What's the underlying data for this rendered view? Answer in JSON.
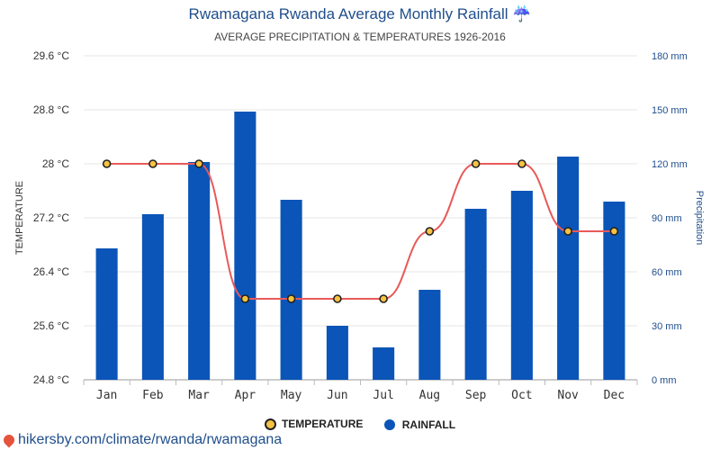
{
  "header": {
    "title": "Rwamagana Rwanda Average Monthly Rainfall ☔",
    "subtitle": "AVERAGE PRECIPITATION & TEMPERATURES 1926-2016"
  },
  "chart_data": {
    "type": "bar",
    "categories": [
      "Jan",
      "Feb",
      "Mar",
      "Apr",
      "May",
      "Jun",
      "Jul",
      "Aug",
      "Sep",
      "Oct",
      "Nov",
      "Dec"
    ],
    "series": [
      {
        "name": "RAINFALL",
        "type": "bar",
        "axis": "right",
        "color": "#0b55b8",
        "values": [
          73,
          92,
          121,
          149,
          100,
          30,
          18,
          50,
          95,
          105,
          124,
          99
        ]
      },
      {
        "name": "TEMPERATURE",
        "type": "line",
        "axis": "left",
        "color": "#e85a5a",
        "values": [
          28,
          28,
          28,
          26,
          26,
          26,
          26,
          27,
          28,
          28,
          27,
          27
        ]
      }
    ],
    "ylabel": "TEMPERATURE",
    "y2label": "Precipitation",
    "ylim": [
      24.8,
      29.6
    ],
    "y2lim": [
      0,
      180
    ],
    "yticks": [
      "24.8 °C",
      "25.6 °C",
      "26.4 °C",
      "27.2 °C",
      "28 °C",
      "28.8 °C",
      "29.6 °C"
    ],
    "y2ticks": [
      "0 mm",
      "30 mm",
      "60 mm",
      "90 mm",
      "120 mm",
      "150 mm",
      "180 mm"
    ],
    "grid": true,
    "legend": "bottom-center"
  },
  "legend": {
    "temperature": "TEMPERATURE",
    "rainfall": "RAINFALL"
  },
  "footer": {
    "source": "hikersby.com/climate/rwanda/rwamagana"
  },
  "colors": {
    "rain_bar": "#0b55b8",
    "temp_line": "#e85a5a",
    "temp_marker": "#f5c242",
    "accent": "#1f4e8c"
  }
}
